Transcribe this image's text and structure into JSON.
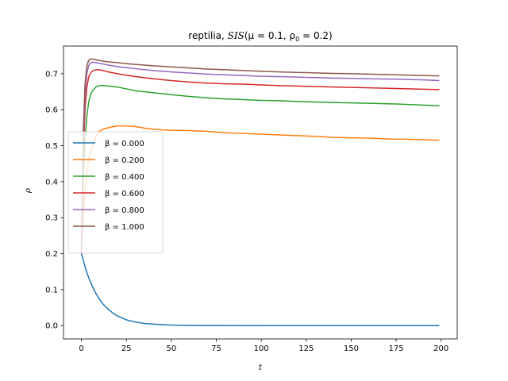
{
  "chart_data": {
    "type": "line",
    "title": "reptilia, SIS(μ = 0.1, ρ₀ = 0.2)",
    "title_parts": {
      "prefix": "reptilia, ",
      "model": "SIS",
      "params": "(μ = 0.1, ρ",
      "sub": "0",
      "tail": " = 0.2)"
    },
    "xlabel": "t",
    "ylabel": "ρ",
    "xlim": [
      -9.95,
      208.95
    ],
    "ylim": [
      -0.037,
      0.777
    ],
    "xticks": [
      0,
      25,
      50,
      75,
      100,
      125,
      150,
      175,
      200
    ],
    "yticks": [
      0.0,
      0.1,
      0.2,
      0.3,
      0.4,
      0.5,
      0.6,
      0.7
    ],
    "ytick_labels": [
      "0.0",
      "0.1",
      "0.2",
      "0.3",
      "0.4",
      "0.5",
      "0.6",
      "0.7"
    ],
    "grid": false,
    "legend_position": "center-left",
    "series": [
      {
        "name": "β = 0.000",
        "color": "#1f77b4",
        "x": [
          0,
          2,
          4,
          6,
          8,
          10,
          12,
          15,
          18,
          20,
          25,
          30,
          35,
          40,
          50,
          60,
          70,
          80,
          100,
          125,
          150,
          175,
          199
        ],
        "y": [
          0.2,
          0.164,
          0.134,
          0.11,
          0.09,
          0.074,
          0.06,
          0.045,
          0.033,
          0.027,
          0.016,
          0.01,
          0.006,
          0.004,
          0.0015,
          0.0006,
          0.0002,
          0.0001,
          0.0,
          0.0,
          0.0,
          0.0,
          0.0
        ]
      },
      {
        "name": "β = 0.200",
        "color": "#ff7f0e",
        "x": [
          0,
          1,
          2,
          3,
          4,
          6,
          8,
          10,
          12,
          15,
          18,
          20,
          25,
          30,
          35,
          40,
          45,
          50,
          60,
          70,
          80,
          90,
          100,
          110,
          120,
          125,
          130,
          140,
          150,
          160,
          170,
          175,
          180,
          190,
          199
        ],
        "y": [
          0.2,
          0.3,
          0.37,
          0.42,
          0.46,
          0.5,
          0.525,
          0.54,
          0.546,
          0.55,
          0.553,
          0.555,
          0.555,
          0.553,
          0.549,
          0.546,
          0.544,
          0.543,
          0.542,
          0.54,
          0.536,
          0.534,
          0.532,
          0.53,
          0.528,
          0.527,
          0.526,
          0.523,
          0.522,
          0.521,
          0.519,
          0.518,
          0.518,
          0.517,
          0.515
        ]
      },
      {
        "name": "β = 0.400",
        "color": "#2ca02c",
        "x": [
          0,
          1,
          2,
          3,
          4,
          5,
          6,
          8,
          10,
          12,
          15,
          20,
          25,
          30,
          40,
          50,
          60,
          70,
          80,
          90,
          100,
          110,
          125,
          140,
          150,
          160,
          175,
          190,
          199
        ],
        "y": [
          0.2,
          0.39,
          0.51,
          0.58,
          0.62,
          0.64,
          0.651,
          0.663,
          0.667,
          0.667,
          0.666,
          0.663,
          0.658,
          0.653,
          0.647,
          0.642,
          0.637,
          0.633,
          0.63,
          0.628,
          0.626,
          0.625,
          0.622,
          0.62,
          0.619,
          0.618,
          0.616,
          0.613,
          0.611
        ]
      },
      {
        "name": "β = 0.600",
        "color": "#d62728",
        "x": [
          0,
          1,
          2,
          3,
          4,
          5,
          6,
          8,
          10,
          12,
          15,
          20,
          25,
          30,
          40,
          50,
          60,
          70,
          80,
          90,
          100,
          110,
          125,
          140,
          150,
          160,
          175,
          190,
          199
        ],
        "y": [
          0.2,
          0.46,
          0.6,
          0.66,
          0.69,
          0.701,
          0.707,
          0.711,
          0.711,
          0.709,
          0.705,
          0.7,
          0.696,
          0.692,
          0.686,
          0.681,
          0.677,
          0.674,
          0.672,
          0.671,
          0.669,
          0.667,
          0.665,
          0.663,
          0.662,
          0.661,
          0.659,
          0.657,
          0.656
        ]
      },
      {
        "name": "β = 0.800",
        "color": "#9467bd",
        "x": [
          0,
          1,
          2,
          3,
          4,
          5,
          6,
          8,
          10,
          12,
          15,
          20,
          25,
          30,
          40,
          50,
          60,
          70,
          80,
          90,
          100,
          110,
          125,
          140,
          150,
          160,
          175,
          190,
          199
        ],
        "y": [
          0.2,
          0.5,
          0.64,
          0.7,
          0.722,
          0.73,
          0.732,
          0.731,
          0.729,
          0.727,
          0.724,
          0.72,
          0.717,
          0.714,
          0.709,
          0.705,
          0.702,
          0.699,
          0.697,
          0.695,
          0.693,
          0.692,
          0.69,
          0.688,
          0.687,
          0.686,
          0.685,
          0.683,
          0.681
        ]
      },
      {
        "name": "β = 1.000",
        "color": "#8c564b",
        "x": [
          0,
          1,
          2,
          3,
          4,
          5,
          6,
          8,
          10,
          12,
          15,
          20,
          25,
          30,
          40,
          50,
          60,
          70,
          80,
          90,
          100,
          110,
          125,
          140,
          150,
          160,
          175,
          190,
          199
        ],
        "y": [
          0.2,
          0.53,
          0.67,
          0.72,
          0.737,
          0.741,
          0.741,
          0.739,
          0.737,
          0.735,
          0.733,
          0.731,
          0.728,
          0.726,
          0.722,
          0.719,
          0.716,
          0.713,
          0.711,
          0.709,
          0.707,
          0.705,
          0.703,
          0.701,
          0.7,
          0.699,
          0.697,
          0.695,
          0.694
        ]
      }
    ]
  }
}
